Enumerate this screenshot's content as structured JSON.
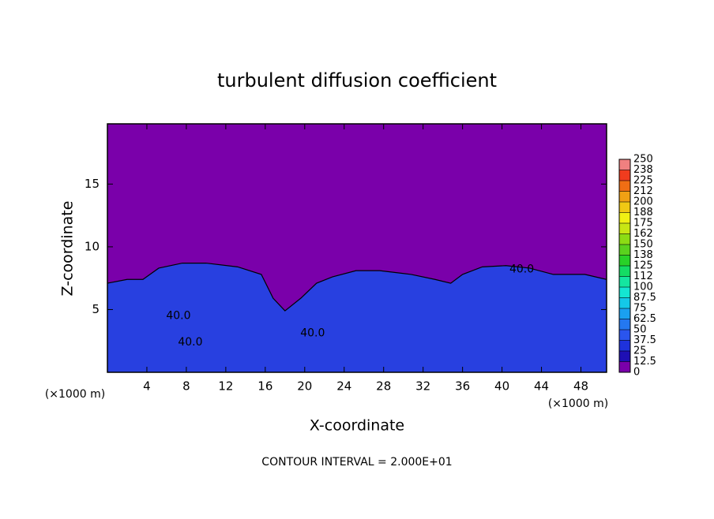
{
  "chart_data": {
    "type": "contour",
    "title": "turbulent diffusion coefficient",
    "x_label": "X-coordinate",
    "y_label": "Z-coordinate",
    "x_unit_labels": [
      "(×1000 m)",
      "(×1000 m)"
    ],
    "footer": "CONTOUR INTERVAL = 2.000E+01",
    "xlim": [
      0,
      50.6
    ],
    "xticks": [
      4,
      8,
      12,
      16,
      20,
      24,
      28,
      32,
      36,
      40,
      44,
      48
    ],
    "ylim": [
      0,
      19.8
    ],
    "yticks": [
      5,
      10,
      15
    ],
    "background_color": "#7a00aa",
    "layer_color": "#2840e0",
    "layer_top": {
      "x": [
        0,
        2,
        3.6,
        5.2,
        7.6,
        10,
        13.2,
        15.6,
        16.8,
        18,
        19.6,
        21.2,
        22.8,
        25.2,
        27.6,
        30.8,
        33.2,
        34.8,
        36,
        38,
        40.4,
        42.8,
        45.2,
        48.4,
        50.6
      ],
      "z": [
        7.1,
        7.4,
        7.4,
        8.3,
        8.7,
        8.7,
        8.4,
        7.8,
        5.9,
        4.9,
        5.9,
        7.1,
        7.6,
        8.1,
        8.1,
        7.8,
        7.4,
        7.1,
        7.8,
        8.4,
        8.5,
        8.3,
        7.8,
        7.8,
        7.4
      ]
    },
    "contour_labels": [
      {
        "value": 40,
        "label": "40.0",
        "x": 7.2,
        "z": 4.5
      },
      {
        "value": 40,
        "label": "40.0",
        "x": 8.4,
        "z": 2.4
      },
      {
        "value": 40,
        "label": "40.0",
        "x": 20.8,
        "z": 3.1
      },
      {
        "value": 40,
        "label": "40.0",
        "x": 42,
        "z": 8.2
      }
    ],
    "colorbar_ticks": [
      0,
      12.5,
      25,
      37.5,
      50,
      62.5,
      75,
      87.5,
      100,
      {
        "value": 112.5,
        "label": "112"
      },
      125,
      {
        "value": 137.5,
        "label": "138"
      },
      150,
      {
        "value": 162.5,
        "label": "162"
      },
      175,
      {
        "value": 187.5,
        "label": "188"
      },
      200,
      {
        "value": 212.5,
        "label": "212"
      },
      225,
      {
        "value": 237.5,
        "label": "238"
      },
      250
    ],
    "colorbar_colors": [
      "#7a00aa",
      "#1e0fb4",
      "#1e32dc",
      "#2a55ee",
      "#2478f0",
      "#1aa0f0",
      "#14c8e8",
      "#14e6d2",
      "#14e6a0",
      "#14dc64",
      "#28d228",
      "#5ad21e",
      "#8cdc14",
      "#c8e614",
      "#f0f014",
      "#f0c814",
      "#f0a014",
      "#f06e14",
      "#f03c1e",
      "#f08080"
    ]
  }
}
